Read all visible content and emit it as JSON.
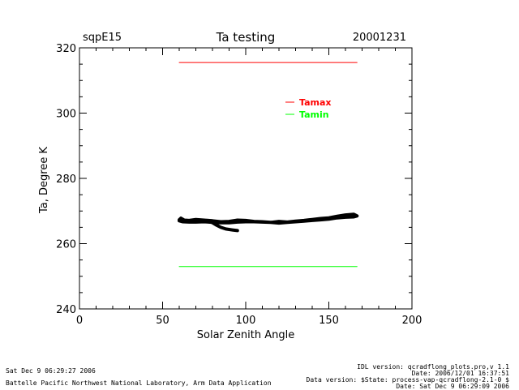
{
  "chart_data": {
    "type": "line",
    "title": "Ta testing",
    "site": "sqpE15",
    "date": "20001231",
    "xlabel": "Solar Zenith Angle",
    "ylabel": "Ta, Degree K",
    "xlim": [
      0,
      200
    ],
    "ylim": [
      240,
      320
    ],
    "xticks": [
      0,
      50,
      100,
      150,
      200
    ],
    "yticks": [
      240,
      260,
      280,
      300,
      320
    ],
    "legend_position": "upper-right",
    "series": [
      {
        "name": "Tamax",
        "color": "#ff0000",
        "x": [
          60,
          167
        ],
        "y": [
          315.5,
          315.5
        ]
      },
      {
        "name": "Tamin",
        "color": "#00ff00",
        "x": [
          60,
          167
        ],
        "y": [
          253,
          253
        ]
      },
      {
        "name": "Ta",
        "color": "#000000",
        "legend": false,
        "x": [
          95,
          92,
          88,
          85,
          82,
          80,
          77,
          73,
          70,
          66,
          63,
          60,
          61,
          63,
          66,
          70,
          75,
          80,
          85,
          90,
          95,
          100,
          105,
          110,
          115,
          120,
          125,
          130,
          135,
          140,
          145,
          150,
          155,
          160,
          165,
          167,
          165,
          160,
          155,
          150,
          145,
          140,
          135,
          130,
          125,
          120,
          115,
          110,
          105,
          100,
          95,
          90,
          85,
          80,
          75,
          70,
          66,
          62,
          60
        ],
        "y": [
          264,
          264.2,
          264.5,
          265,
          265.8,
          266.4,
          266.8,
          266.8,
          266.6,
          266.6,
          266.9,
          267.3,
          267.8,
          267.2,
          267.1,
          267.4,
          267.2,
          267,
          266.7,
          266.8,
          267.2,
          267.1,
          266.8,
          266.7,
          266.5,
          266.8,
          266.6,
          266.9,
          267.1,
          267.4,
          267.7,
          267.9,
          268.4,
          268.8,
          269,
          268.5,
          268.2,
          268.1,
          267.9,
          267.5,
          267.3,
          267.1,
          266.9,
          266.7,
          266.5,
          266.3,
          266.5,
          266.6,
          266.7,
          266.7,
          266.6,
          266.4,
          266.4,
          266.5,
          266.7,
          266.6,
          266.6,
          266.7,
          267
        ]
      }
    ]
  },
  "footer": {
    "timestamp": "Sat Dec  9 06:29:27 2006",
    "lab": "Battelle Pacific Northwest National Laboratory, Arm Data Application",
    "idl_version": "IDL version: qcradflong_plots.pro,v 1.1",
    "idl_date": "Date: 2006/12/01 16:37:51",
    "data_version": "Data version: $State: process-vap-qcradflong-2.1-0 $",
    "data_date": "Date: Sat Dec  9 06:29:09 2006"
  }
}
